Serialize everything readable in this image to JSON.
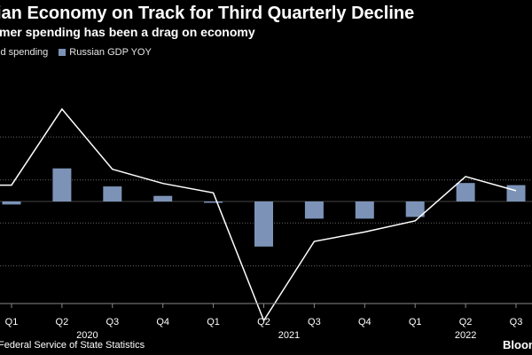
{
  "title": "ian Economy on Track for Third Quarterly Decline",
  "subtitle": "mer spending has been a drag on economy",
  "legend": {
    "line_label": "ld spending",
    "bar_label": "Russian GDP YOY"
  },
  "footer": "Federal Service of State Statistics",
  "logo_text": "Bloom",
  "colors": {
    "background": "#000000",
    "bar": "#7c93b7",
    "line": "#ffffff",
    "grid": "#666666"
  },
  "chart_data": {
    "type": "bar",
    "categories": [
      "Q1",
      "Q2",
      "Q3",
      "Q4",
      "Q1",
      "Q2",
      "Q3",
      "Q4",
      "Q1",
      "Q2",
      "Q3"
    ],
    "year_labels": [
      {
        "label": "2020",
        "span": [
          0,
          3
        ]
      },
      {
        "label": "2021",
        "span": [
          4,
          7
        ]
      },
      {
        "label": "2022",
        "span": [
          8,
          10
        ]
      }
    ],
    "series": [
      {
        "name": "Russian GDP YOY",
        "type": "bar",
        "values": [
          -0.7,
          7.7,
          3.5,
          1.3,
          -0.3,
          -10.5,
          -4.0,
          -4.0,
          -3.6,
          4.3,
          3.8
        ]
      },
      {
        "name": "ld spending",
        "type": "line",
        "values": [
          3.8,
          21.5,
          7.5,
          4.2,
          2.0,
          -27.7,
          -9.3,
          -7.1,
          -4.5,
          5.8,
          2.5
        ]
      }
    ],
    "line_start_value": 3.8,
    "ylim": [
      -24,
      28
    ],
    "gridlines": [
      15,
      5,
      -5,
      -15
    ],
    "grid": true,
    "legend_position": "top-left"
  }
}
